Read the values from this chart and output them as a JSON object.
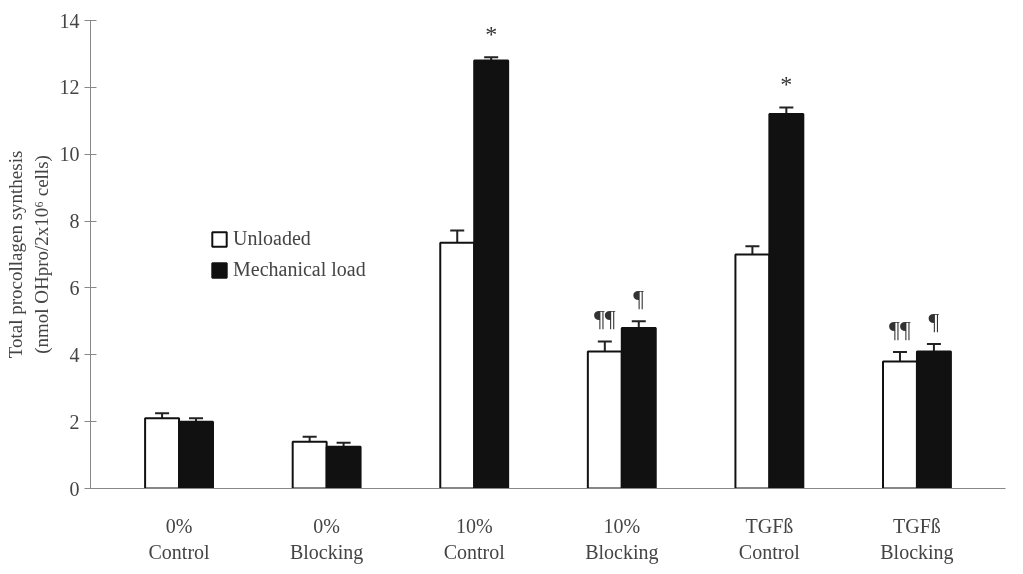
{
  "chart_data": {
    "type": "bar",
    "ylabel": "Total procollagen synthesis\n(nmol OHpro/2x10⁶ cells)",
    "categories": [
      "0%\nControl",
      "0%\nBlocking",
      "10%\nControl",
      "10%\nBlocking",
      "TGFß\nControl",
      "TGFß\nBlocking"
    ],
    "series": [
      {
        "name": "Unloaded",
        "color": "#ffffff",
        "values": [
          2.1,
          1.4,
          7.35,
          4.1,
          7.0,
          3.8
        ],
        "errors": [
          0.15,
          0.15,
          0.37,
          0.3,
          0.25,
          0.28
        ],
        "value_labels": [
          null,
          null,
          null,
          "¶¶",
          null,
          "¶¶"
        ]
      },
      {
        "name": "Mechanical load",
        "color": "#111111",
        "values": [
          2.0,
          1.25,
          12.8,
          4.8,
          11.2,
          4.1
        ],
        "errors": [
          0.1,
          0.12,
          0.1,
          0.2,
          0.2,
          0.22
        ],
        "value_labels": [
          null,
          null,
          "*",
          "¶",
          "*",
          "¶"
        ]
      }
    ],
    "ylim": [
      0,
      14
    ],
    "yticks": [
      0,
      2,
      4,
      6,
      8,
      10,
      12,
      14
    ],
    "grid": false,
    "legend": "left"
  }
}
